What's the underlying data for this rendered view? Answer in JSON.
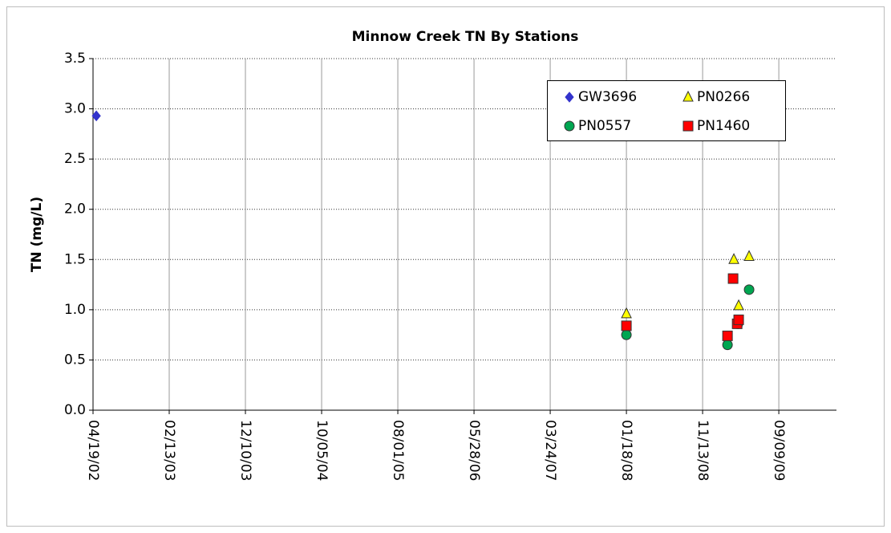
{
  "chart_data": {
    "type": "scatter",
    "title": "Minnow Creek TN By Stations",
    "y_label": "TN  (mg/L)",
    "date_format": "MM/DD/YY",
    "xlim": [
      "04/19/02",
      "04/24/10"
    ],
    "xticks": [
      "04/19/02",
      "02/13/03",
      "12/10/03",
      "10/05/04",
      "08/01/05",
      "05/28/06",
      "03/24/07",
      "01/18/08",
      "11/13/08",
      "09/09/09"
    ],
    "ylim": [
      0,
      3.5
    ],
    "yticks": [
      {
        "value": 0,
        "label": "0.0"
      },
      {
        "value": 0.5,
        "label": "0.5"
      },
      {
        "value": 1,
        "label": "1.0"
      },
      {
        "value": 1.5,
        "label": "1.5"
      },
      {
        "value": 2,
        "label": "2.0"
      },
      {
        "value": 2.5,
        "label": "2.5"
      },
      {
        "value": 3,
        "label": "3.0"
      },
      {
        "value": 3.5,
        "label": "3.5"
      }
    ],
    "grid": true,
    "legend": "top-right",
    "series": [
      {
        "name": "GW3696",
        "color": "#3333cc",
        "marker": "diamond",
        "x": [
          "05/02/02"
        ],
        "values": [
          2.93
        ]
      },
      {
        "name": "PN0266",
        "color": "#ffff00",
        "marker": "triangle",
        "x": [
          "01/18/08",
          "03/16/09",
          "04/04/09",
          "05/15/09"
        ],
        "values": [
          0.96,
          1.5,
          1.04,
          1.53
        ]
      },
      {
        "name": "PN0557",
        "color": "#00a651",
        "marker": "circle",
        "x": [
          "01/18/08",
          "02/19/09",
          "04/01/09",
          "05/15/09"
        ],
        "values": [
          0.75,
          0.65,
          0.86,
          1.2
        ]
      },
      {
        "name": "PN1460",
        "color": "#ff0000",
        "marker": "square",
        "x": [
          "01/18/08",
          "02/19/09",
          "03/13/09",
          "03/29/09",
          "04/04/09"
        ],
        "values": [
          0.84,
          0.74,
          1.31,
          0.86,
          0.9
        ]
      }
    ]
  }
}
